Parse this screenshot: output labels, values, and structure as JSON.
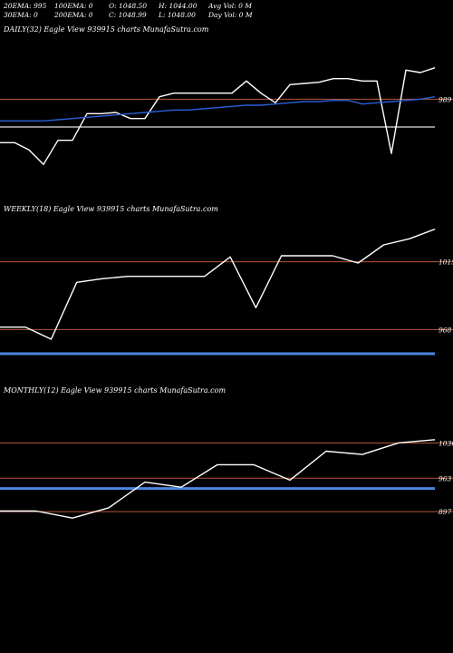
{
  "header": {
    "row1": [
      "20EMA: 995",
      "100EMA: 0",
      "O: 1048.50",
      "H: 1044.00",
      "Avg Vol: 0  M"
    ],
    "row2": [
      "30EMA: 0",
      "200EMA: 0",
      "C: 1048.99",
      "L: 1048.00",
      "Day Vol: 0  M"
    ]
  },
  "colors": {
    "background": "#000000",
    "price_line": "#ffffff",
    "ema_line": "#2a5fd8",
    "level_line": "#b8583a",
    "gray_line": "#bdbdbd",
    "band": "#4a86e0"
  },
  "chart_data": [
    {
      "type": "line",
      "title": "DAILY(32) Eagle  View  939915 charts MunafaSutra.com",
      "level_labels": [
        "989"
      ],
      "series": [
        {
          "values": [
            1002,
            1002,
            996,
            984,
            1004,
            1004,
            1026,
            1026,
            1027,
            1022,
            1022,
            1040,
            1043,
            1043,
            1043,
            1043,
            1043,
            1053,
            1043,
            1035,
            1050,
            1051,
            1052,
            1055,
            1055,
            1053,
            1053,
            993,
            1062,
            1060,
            1064
          ]
        },
        {
          "values": [
            1020,
            1020,
            1020,
            1020,
            1021,
            1022,
            1023,
            1024,
            1025,
            1026,
            1027,
            1028,
            1029,
            1029,
            1030,
            1031,
            1032,
            1033,
            1033,
            1034,
            1035,
            1036,
            1036,
            1037,
            1037,
            1034,
            1035,
            1036,
            1037,
            1038,
            1040
          ]
        }
      ],
      "levels": [
        1038
      ],
      "gray_level": 1015,
      "ylim": [
        940,
        1090
      ]
    },
    {
      "type": "line",
      "title": "WEEKLY(18) Eagle  View  939915 charts MunafaSutra.com",
      "level_labels": [
        "1015",
        "968"
      ],
      "series": [
        {
          "values": [
            968,
            968,
            958,
            1005,
            1008,
            1010,
            1010,
            1010,
            1010,
            1026,
            984,
            1027,
            1027,
            1027,
            1021,
            1036,
            1041,
            1049
          ]
        }
      ],
      "levels": [
        1022,
        966
      ],
      "band_level": 946,
      "ylim": [
        910,
        1060
      ]
    },
    {
      "type": "line",
      "title": "MONTHLY(12) Eagle  View  939915 charts MunafaSutra.com",
      "level_labels": [
        "1036",
        "963",
        "897"
      ],
      "series": [
        {
          "values": [
            898,
            898,
            887,
            903,
            943,
            935,
            970,
            970,
            946,
            991,
            986,
            1004,
            1009
          ]
        }
      ],
      "levels": [
        1004,
        949,
        897
      ],
      "band_level": 933,
      "ylim": [
        790,
        1075
      ]
    }
  ]
}
